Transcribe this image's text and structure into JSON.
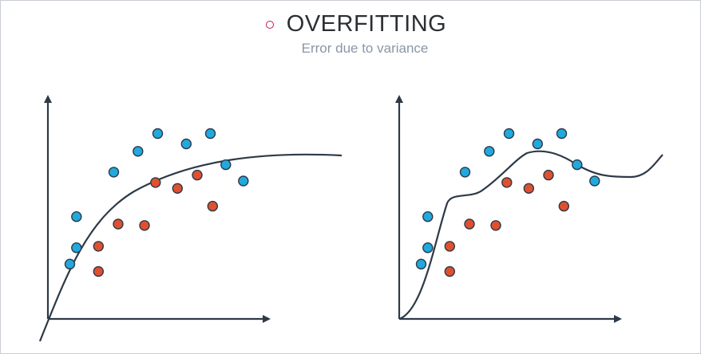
{
  "header": {
    "title": "OVERFITTING",
    "subtitle": "Error due to variance"
  },
  "colors": {
    "bullet": "#c2185b",
    "blue_points": "#21a9de",
    "red_points": "#e0502f",
    "axis": "#2d3a48",
    "curve": "#2d3a48"
  },
  "diagram": {
    "blue_points": [
      [
        1.0,
        3.7
      ],
      [
        1.3,
        6.9
      ],
      [
        1.3,
        4.8
      ],
      [
        3.0,
        9.9
      ],
      [
        4.1,
        11.3
      ],
      [
        5.0,
        12.5
      ],
      [
        6.3,
        11.8
      ],
      [
        7.4,
        12.5
      ],
      [
        8.1,
        10.4
      ],
      [
        8.9,
        9.3
      ]
    ],
    "red_points": [
      [
        2.3,
        4.9
      ],
      [
        2.3,
        3.2
      ],
      [
        3.2,
        6.4
      ],
      [
        4.4,
        6.3
      ],
      [
        4.9,
        9.2
      ],
      [
        5.9,
        8.8
      ],
      [
        6.8,
        9.7
      ],
      [
        7.5,
        7.6
      ]
    ],
    "panels": [
      {
        "id": "left",
        "curve": "smooth-underfit"
      },
      {
        "id": "right",
        "curve": "wiggly-overfit"
      }
    ]
  }
}
